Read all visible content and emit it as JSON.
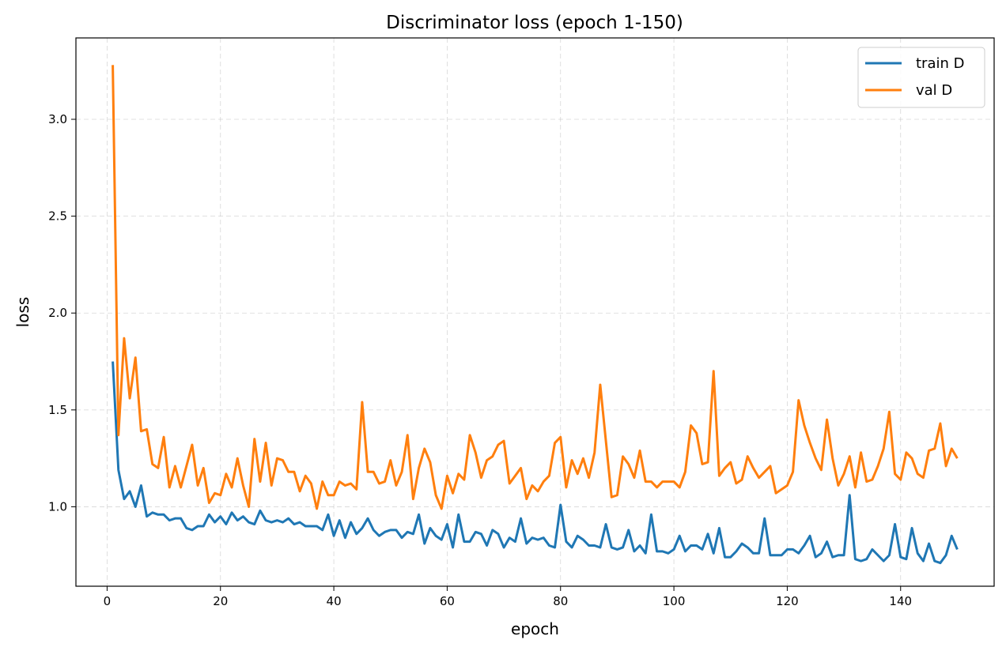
{
  "chart_data": {
    "type": "line",
    "title": "Discriminator loss (epoch 1-150)",
    "xlabel": "epoch",
    "ylabel": "loss",
    "xlim": [
      -5.5,
      156.5
    ],
    "ylim": [
      0.59,
      3.42
    ],
    "xticks": [
      0,
      20,
      40,
      60,
      80,
      100,
      120,
      140
    ],
    "xtick_labels": [
      "0",
      "20",
      "40",
      "60",
      "80",
      "100",
      "120",
      "140"
    ],
    "yticks": [
      1.0,
      1.5,
      2.0,
      2.5,
      3.0
    ],
    "ytick_labels": [
      "1.0",
      "1.5",
      "2.0",
      "2.5",
      "3.0"
    ],
    "grid": true,
    "legend_position": "top-right",
    "x_start": 1,
    "series": [
      {
        "name": "train D",
        "color": "#1f77b4",
        "values": [
          1.75,
          1.19,
          1.04,
          1.08,
          1.0,
          1.11,
          0.95,
          0.97,
          0.96,
          0.96,
          0.93,
          0.94,
          0.94,
          0.89,
          0.88,
          0.9,
          0.9,
          0.96,
          0.92,
          0.95,
          0.91,
          0.97,
          0.93,
          0.95,
          0.92,
          0.91,
          0.98,
          0.93,
          0.92,
          0.93,
          0.92,
          0.94,
          0.91,
          0.92,
          0.9,
          0.9,
          0.9,
          0.88,
          0.96,
          0.85,
          0.93,
          0.84,
          0.92,
          0.86,
          0.89,
          0.94,
          0.88,
          0.85,
          0.87,
          0.88,
          0.88,
          0.84,
          0.87,
          0.86,
          0.96,
          0.81,
          0.89,
          0.85,
          0.83,
          0.91,
          0.79,
          0.96,
          0.82,
          0.82,
          0.87,
          0.86,
          0.8,
          0.88,
          0.86,
          0.79,
          0.84,
          0.82,
          0.94,
          0.81,
          0.84,
          0.83,
          0.84,
          0.8,
          0.79,
          1.01,
          0.82,
          0.79,
          0.85,
          0.83,
          0.8,
          0.8,
          0.79,
          0.91,
          0.79,
          0.78,
          0.79,
          0.88,
          0.77,
          0.8,
          0.76,
          0.96,
          0.77,
          0.77,
          0.76,
          0.78,
          0.85,
          0.77,
          0.8,
          0.8,
          0.78,
          0.86,
          0.76,
          0.89,
          0.74,
          0.74,
          0.77,
          0.81,
          0.79,
          0.76,
          0.76,
          0.94,
          0.75,
          0.75,
          0.75,
          0.78,
          0.78,
          0.76,
          0.8,
          0.85,
          0.74,
          0.76,
          0.82,
          0.74,
          0.75,
          0.75,
          1.06,
          0.73,
          0.72,
          0.73,
          0.78,
          0.75,
          0.72,
          0.75,
          0.91,
          0.74,
          0.73,
          0.89,
          0.76,
          0.72,
          0.81,
          0.72,
          0.71,
          0.75,
          0.85,
          0.78
        ]
      },
      {
        "name": "val D",
        "color": "#ff7f0e",
        "values": [
          3.28,
          1.37,
          1.87,
          1.56,
          1.77,
          1.39,
          1.4,
          1.22,
          1.2,
          1.36,
          1.1,
          1.21,
          1.1,
          1.21,
          1.32,
          1.11,
          1.2,
          1.02,
          1.07,
          1.06,
          1.17,
          1.1,
          1.25,
          1.11,
          1.0,
          1.35,
          1.13,
          1.33,
          1.11,
          1.25,
          1.24,
          1.18,
          1.18,
          1.08,
          1.16,
          1.12,
          0.99,
          1.13,
          1.06,
          1.06,
          1.13,
          1.11,
          1.12,
          1.09,
          1.54,
          1.18,
          1.18,
          1.12,
          1.13,
          1.24,
          1.11,
          1.18,
          1.37,
          1.04,
          1.2,
          1.3,
          1.23,
          1.06,
          0.99,
          1.16,
          1.07,
          1.17,
          1.14,
          1.37,
          1.28,
          1.15,
          1.24,
          1.26,
          1.32,
          1.34,
          1.12,
          1.16,
          1.2,
          1.04,
          1.11,
          1.08,
          1.13,
          1.16,
          1.33,
          1.36,
          1.1,
          1.24,
          1.17,
          1.25,
          1.15,
          1.28,
          1.63,
          1.34,
          1.05,
          1.06,
          1.26,
          1.22,
          1.15,
          1.29,
          1.13,
          1.13,
          1.1,
          1.13,
          1.13,
          1.13,
          1.1,
          1.18,
          1.42,
          1.38,
          1.22,
          1.23,
          1.7,
          1.16,
          1.2,
          1.23,
          1.12,
          1.14,
          1.26,
          1.2,
          1.15,
          1.18,
          1.21,
          1.07,
          1.09,
          1.11,
          1.18,
          1.55,
          1.42,
          1.33,
          1.25,
          1.19,
          1.45,
          1.25,
          1.11,
          1.17,
          1.26,
          1.1,
          1.28,
          1.13,
          1.14,
          1.21,
          1.3,
          1.49,
          1.17,
          1.14,
          1.28,
          1.25,
          1.17,
          1.15,
          1.29,
          1.3,
          1.43,
          1.21,
          1.3,
          1.25
        ]
      }
    ]
  }
}
